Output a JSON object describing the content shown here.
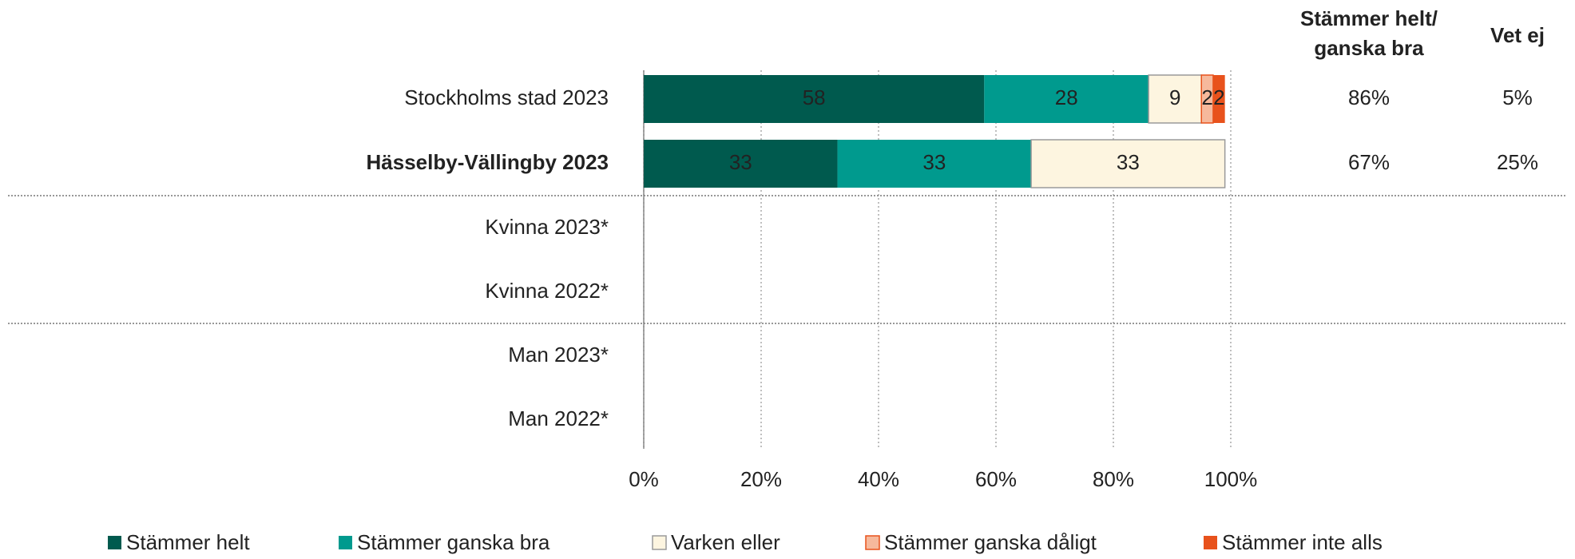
{
  "chart_data": {
    "type": "stacked_barh",
    "categories": [
      "Stockholms stad 2023",
      "Hässelby-Vällingby 2023",
      "Kvinna 2023*",
      "Kvinna 2022*",
      "Man 2023*",
      "Man 2022*"
    ],
    "bold_category_index": 1,
    "series": [
      {
        "name": "Stämmer helt",
        "color": "#005a4e",
        "label_color": "#ffffff",
        "values": [
          58,
          33,
          null,
          null,
          null,
          null
        ]
      },
      {
        "name": "Stämmer ganska bra",
        "color": "#009a8e",
        "label_color": "#1a1a1a",
        "values": [
          28,
          33,
          null,
          null,
          null,
          null
        ]
      },
      {
        "name": "Varken eller",
        "color": "#fdf5e0",
        "border": "#9a9a9a",
        "label_color": "#1a1a1a",
        "values": [
          9,
          33,
          null,
          null,
          null,
          null
        ]
      },
      {
        "name": "Stämmer ganska dåligt",
        "color": "#f6b99c",
        "border": "#e8521c",
        "label_color": "#1a1a1a",
        "values": [
          2,
          null,
          null,
          null,
          null,
          null
        ]
      },
      {
        "name": "Stämmer inte alls",
        "color": "#e8521c",
        "label_color": "#1a1a1a",
        "values": [
          2,
          null,
          null,
          null,
          null,
          null
        ]
      }
    ],
    "xlim": [
      0,
      100
    ],
    "xticks": [
      {
        "value": 0,
        "label": "0%"
      },
      {
        "value": 20,
        "label": "20%"
      },
      {
        "value": 40,
        "label": "40%"
      },
      {
        "value": 60,
        "label": "60%"
      },
      {
        "value": 80,
        "label": "80%"
      },
      {
        "value": 100,
        "label": "100%"
      }
    ],
    "grid": true,
    "side_columns": [
      {
        "title": [
          "Stämmer helt/",
          "ganska bra"
        ],
        "values": [
          86,
          67,
          null,
          null,
          null,
          null
        ],
        "value_labels": [
          "86%",
          "67%",
          null,
          null,
          null,
          null
        ]
      },
      {
        "title": [
          "Vet ej"
        ],
        "values": [
          5,
          25,
          null,
          null,
          null,
          null
        ],
        "value_labels": [
          "5%",
          "25%",
          null,
          null,
          null,
          null
        ]
      }
    ],
    "legend": "bottom"
  }
}
